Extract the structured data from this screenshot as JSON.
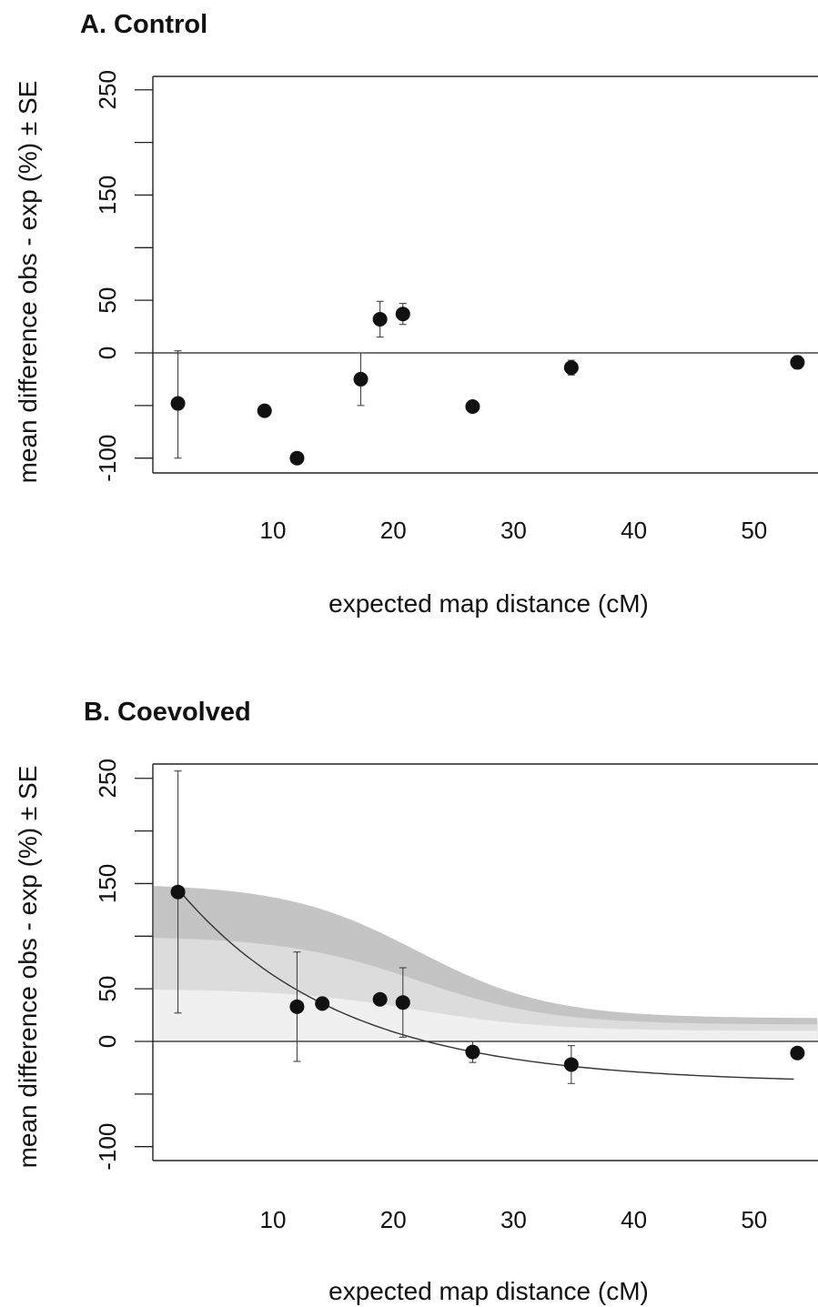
{
  "chart_data": [
    {
      "type": "scatter",
      "title": "A. Control",
      "xlabel": "expected map distance (cM)",
      "ylabel": "mean difference obs - exp (%) ± SE",
      "xlim": [
        0,
        55
      ],
      "ylim": [
        -115,
        250
      ],
      "xticks": [
        "10",
        "20",
        "30",
        "40",
        "50"
      ],
      "yticks": [
        "-100",
        "-50",
        "0",
        "50",
        "100",
        "150",
        "200",
        "250"
      ],
      "ytick_labels": [
        "-100",
        "",
        "0",
        "50",
        "",
        "150",
        "",
        "250"
      ],
      "reference_line_y": 0,
      "points": [
        {
          "x": 2.1,
          "y": -48,
          "se_low": -100,
          "se_high": 2
        },
        {
          "x": 9.3,
          "y": -55
        },
        {
          "x": 12.0,
          "y": -100
        },
        {
          "x": 17.3,
          "y": -25,
          "se_low": -50,
          "se_high": 0
        },
        {
          "x": 18.9,
          "y": 32,
          "se_low": 15,
          "se_high": 49
        },
        {
          "x": 20.8,
          "y": 37,
          "se_low": 27,
          "se_high": 47
        },
        {
          "x": 26.6,
          "y": -51
        },
        {
          "x": 34.8,
          "y": -14,
          "se_low": -21,
          "se_high": -7
        },
        {
          "x": 53.6,
          "y": -9,
          "se_low": -15,
          "se_high": -3
        }
      ]
    },
    {
      "type": "scatter",
      "title": "B. Coevolved",
      "xlabel": "expected map distance (cM)",
      "ylabel": "mean difference obs - exp (%) ± SE",
      "xlim": [
        0,
        55
      ],
      "ylim": [
        -115,
        250
      ],
      "xticks": [
        "10",
        "20",
        "30",
        "40",
        "50"
      ],
      "yticks": [
        "-100",
        "-50",
        "0",
        "50",
        "100",
        "150",
        "200",
        "250"
      ],
      "ytick_labels": [
        "-100",
        "",
        "0",
        "50",
        "",
        "150",
        "",
        "250"
      ],
      "reference_line_y": 0,
      "shaded_bands": [
        {
          "level": 150,
          "color": "#c4c4c4"
        },
        {
          "level": 100,
          "color": "#dcdcdc"
        },
        {
          "level": 50,
          "color": "#f0f0f0"
        }
      ],
      "fitted_curve": {
        "x_start": 2.1,
        "x_end": 53.6,
        "color": "#333333"
      },
      "points": [
        {
          "x": 2.1,
          "y": 142,
          "se_low": 27,
          "se_high": 257
        },
        {
          "x": 12.0,
          "y": 33,
          "se_low": -19,
          "se_high": 85
        },
        {
          "x": 14.1,
          "y": 36
        },
        {
          "x": 18.9,
          "y": 40
        },
        {
          "x": 20.8,
          "y": 37,
          "se_low": 4,
          "se_high": 70
        },
        {
          "x": 26.6,
          "y": -10,
          "se_low": -20,
          "se_high": 0
        },
        {
          "x": 34.8,
          "y": -22,
          "se_low": -40,
          "se_high": -4
        },
        {
          "x": 53.6,
          "y": -11
        }
      ]
    }
  ]
}
